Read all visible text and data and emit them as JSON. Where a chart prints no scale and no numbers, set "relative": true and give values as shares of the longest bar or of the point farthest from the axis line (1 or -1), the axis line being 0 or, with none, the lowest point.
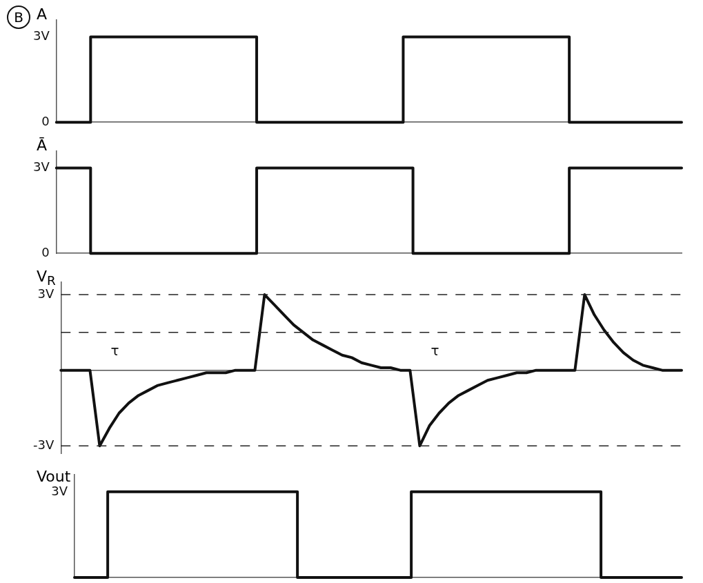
{
  "chart_data": [
    {
      "type": "step",
      "title": "B",
      "ylabel": "A",
      "categories": [
        null,
        null,
        null,
        null,
        null,
        null,
        null,
        null,
        null,
        null,
        null,
        null,
        null,
        null,
        null,
        null,
        null,
        null,
        null,
        null,
        null,
        null,
        null,
        null,
        null,
        null,
        null,
        null,
        null,
        null,
        null,
        null,
        null,
        null,
        null,
        null,
        null,
        null,
        null,
        null,
        null,
        null,
        null,
        null,
        null,
        null,
        null,
        null,
        null,
        null,
        null,
        null,
        null,
        null,
        null,
        null,
        null,
        null,
        null,
        null,
        null,
        null,
        null,
        null,
        null
      ],
      "ylim": [
        0,
        3.6
      ],
      "yticks": [
        {
          "value": 0,
          "label": "0"
        },
        {
          "value": 3,
          "label": "3V"
        }
      ],
      "grid": false,
      "tick_labels": "y",
      "series": [
        {
          "color": "#111111",
          "values": [
            0,
            0,
            0,
            0,
            3,
            3,
            3,
            3,
            3,
            3,
            3,
            3,
            3,
            3,
            3,
            3,
            3,
            3,
            3,
            3,
            3,
            0,
            0,
            0,
            0,
            0,
            0,
            0,
            0,
            0,
            0,
            0,
            0,
            0,
            0,
            0,
            3,
            3,
            3,
            3,
            3,
            3,
            3,
            3,
            3,
            3,
            3,
            3,
            3,
            3,
            3,
            3,
            3,
            0,
            0,
            0,
            0,
            0,
            0,
            0,
            0,
            0,
            0,
            0,
            0
          ]
        }
      ]
    },
    {
      "type": "step",
      "ylabel": "Ā",
      "categories": [
        null,
        null,
        null,
        null,
        null,
        null,
        null,
        null,
        null,
        null,
        null,
        null,
        null,
        null,
        null,
        null,
        null,
        null,
        null,
        null,
        null,
        null,
        null,
        null,
        null,
        null,
        null,
        null,
        null,
        null,
        null,
        null,
        null,
        null,
        null,
        null,
        null,
        null,
        null,
        null,
        null,
        null,
        null,
        null,
        null,
        null,
        null,
        null,
        null,
        null,
        null,
        null,
        null,
        null,
        null,
        null,
        null,
        null,
        null,
        null,
        null,
        null,
        null,
        null,
        null
      ],
      "ylim": [
        0,
        3.6
      ],
      "yticks": [
        {
          "value": 0,
          "label": "0"
        },
        {
          "value": 3,
          "label": "3V"
        }
      ],
      "grid": false,
      "tick_labels": "y",
      "series": [
        {
          "color": "#111111",
          "values": [
            3,
            3,
            3,
            3,
            0,
            0,
            0,
            0,
            0,
            0,
            0,
            0,
            0,
            0,
            0,
            0,
            0,
            0,
            0,
            0,
            0,
            3,
            3,
            3,
            3,
            3,
            3,
            3,
            3,
            3,
            3,
            3,
            3,
            3,
            3,
            3,
            3,
            0,
            0,
            0,
            0,
            0,
            0,
            0,
            0,
            0,
            0,
            0,
            0,
            0,
            0,
            0,
            0,
            3,
            3,
            3,
            3,
            3,
            3,
            3,
            3,
            3,
            3,
            3,
            3
          ]
        }
      ]
    },
    {
      "type": "line",
      "ylabel": "V$_{R}$",
      "categories": [
        null,
        null,
        null,
        null,
        null,
        null,
        null,
        null,
        null,
        null,
        null,
        null,
        null,
        null,
        null,
        null,
        null,
        null,
        null,
        null,
        null,
        null,
        null,
        null,
        null,
        null,
        null,
        null,
        null,
        null,
        null,
        null,
        null,
        null,
        null,
        null,
        null,
        null,
        null,
        null,
        null,
        null,
        null,
        null,
        null,
        null,
        null,
        null,
        null,
        null,
        null,
        null,
        null,
        null,
        null,
        null,
        null,
        null,
        null,
        null,
        null,
        null,
        null,
        null,
        null
      ],
      "ylim": [
        -3.3,
        3.5
      ],
      "yticks": [
        {
          "value": -3,
          "label": "-3V"
        },
        {
          "value": 3,
          "label": "3V"
        }
      ],
      "grid": false,
      "tick_labels": "y",
      "ref_lines": [
        {
          "axis": "y",
          "value": 3,
          "line_style": "dashed"
        },
        {
          "axis": "y",
          "value": 1.5,
          "line_style": "dashed"
        },
        {
          "axis": "y",
          "value": -3,
          "line_style": "dashed"
        }
      ],
      "annotations": [
        "τ",
        "τ"
      ],
      "series": [
        {
          "color": "#111111",
          "values": [
            0,
            0,
            0,
            0,
            -3,
            -2.3,
            -1.7,
            -1.3,
            -1,
            -0.8,
            -0.6,
            -0.5,
            -0.4,
            -0.3,
            -0.2,
            -0.1,
            -0.1,
            -0.1,
            0,
            0,
            0,
            3,
            2.6,
            2.2,
            1.8,
            1.5,
            1.2,
            1,
            0.8,
            0.6,
            0.5,
            0.3,
            0.2,
            0.1,
            0.1,
            0,
            0,
            -3,
            -2.2,
            -1.7,
            -1.3,
            -1,
            -0.8,
            -0.6,
            -0.4,
            -0.3,
            -0.2,
            -0.1,
            -0.1,
            0,
            0,
            0,
            0,
            0,
            3,
            2.2,
            1.6,
            1.1,
            0.7,
            0.4,
            0.2,
            0.1,
            0,
            0,
            0
          ]
        }
      ]
    },
    {
      "type": "step",
      "ylabel": "Vout",
      "categories": [
        null,
        null,
        null,
        null,
        null,
        null,
        null,
        null,
        null,
        null,
        null,
        null,
        null,
        null,
        null,
        null,
        null,
        null,
        null,
        null,
        null,
        null,
        null,
        null,
        null,
        null,
        null,
        null,
        null,
        null,
        null,
        null,
        null,
        null,
        null,
        null,
        null,
        null,
        null,
        null,
        null,
        null,
        null,
        null,
        null,
        null,
        null,
        null,
        null,
        null,
        null,
        null,
        null,
        null,
        null,
        null,
        null,
        null,
        null,
        null,
        null,
        null,
        null,
        null,
        null
      ],
      "relative": true,
      "annotations": [
        "3V"
      ],
      "grid": false,
      "tick_labels": false,
      "series": [
        {
          "color": "#111111",
          "values": [
            0,
            0,
            0,
            0,
            1,
            1,
            1,
            1,
            1,
            1,
            1,
            1,
            1,
            1,
            1,
            1,
            1,
            1,
            1,
            1,
            1,
            1,
            1,
            1,
            0,
            0,
            0,
            0,
            0,
            0,
            0,
            0,
            0,
            0,
            0,
            0,
            1,
            1,
            1,
            1,
            1,
            1,
            1,
            1,
            1,
            1,
            1,
            1,
            1,
            1,
            1,
            1,
            1,
            1,
            1,
            1,
            0,
            0,
            0,
            0,
            0,
            0,
            0,
            0,
            0
          ]
        }
      ]
    }
  ]
}
